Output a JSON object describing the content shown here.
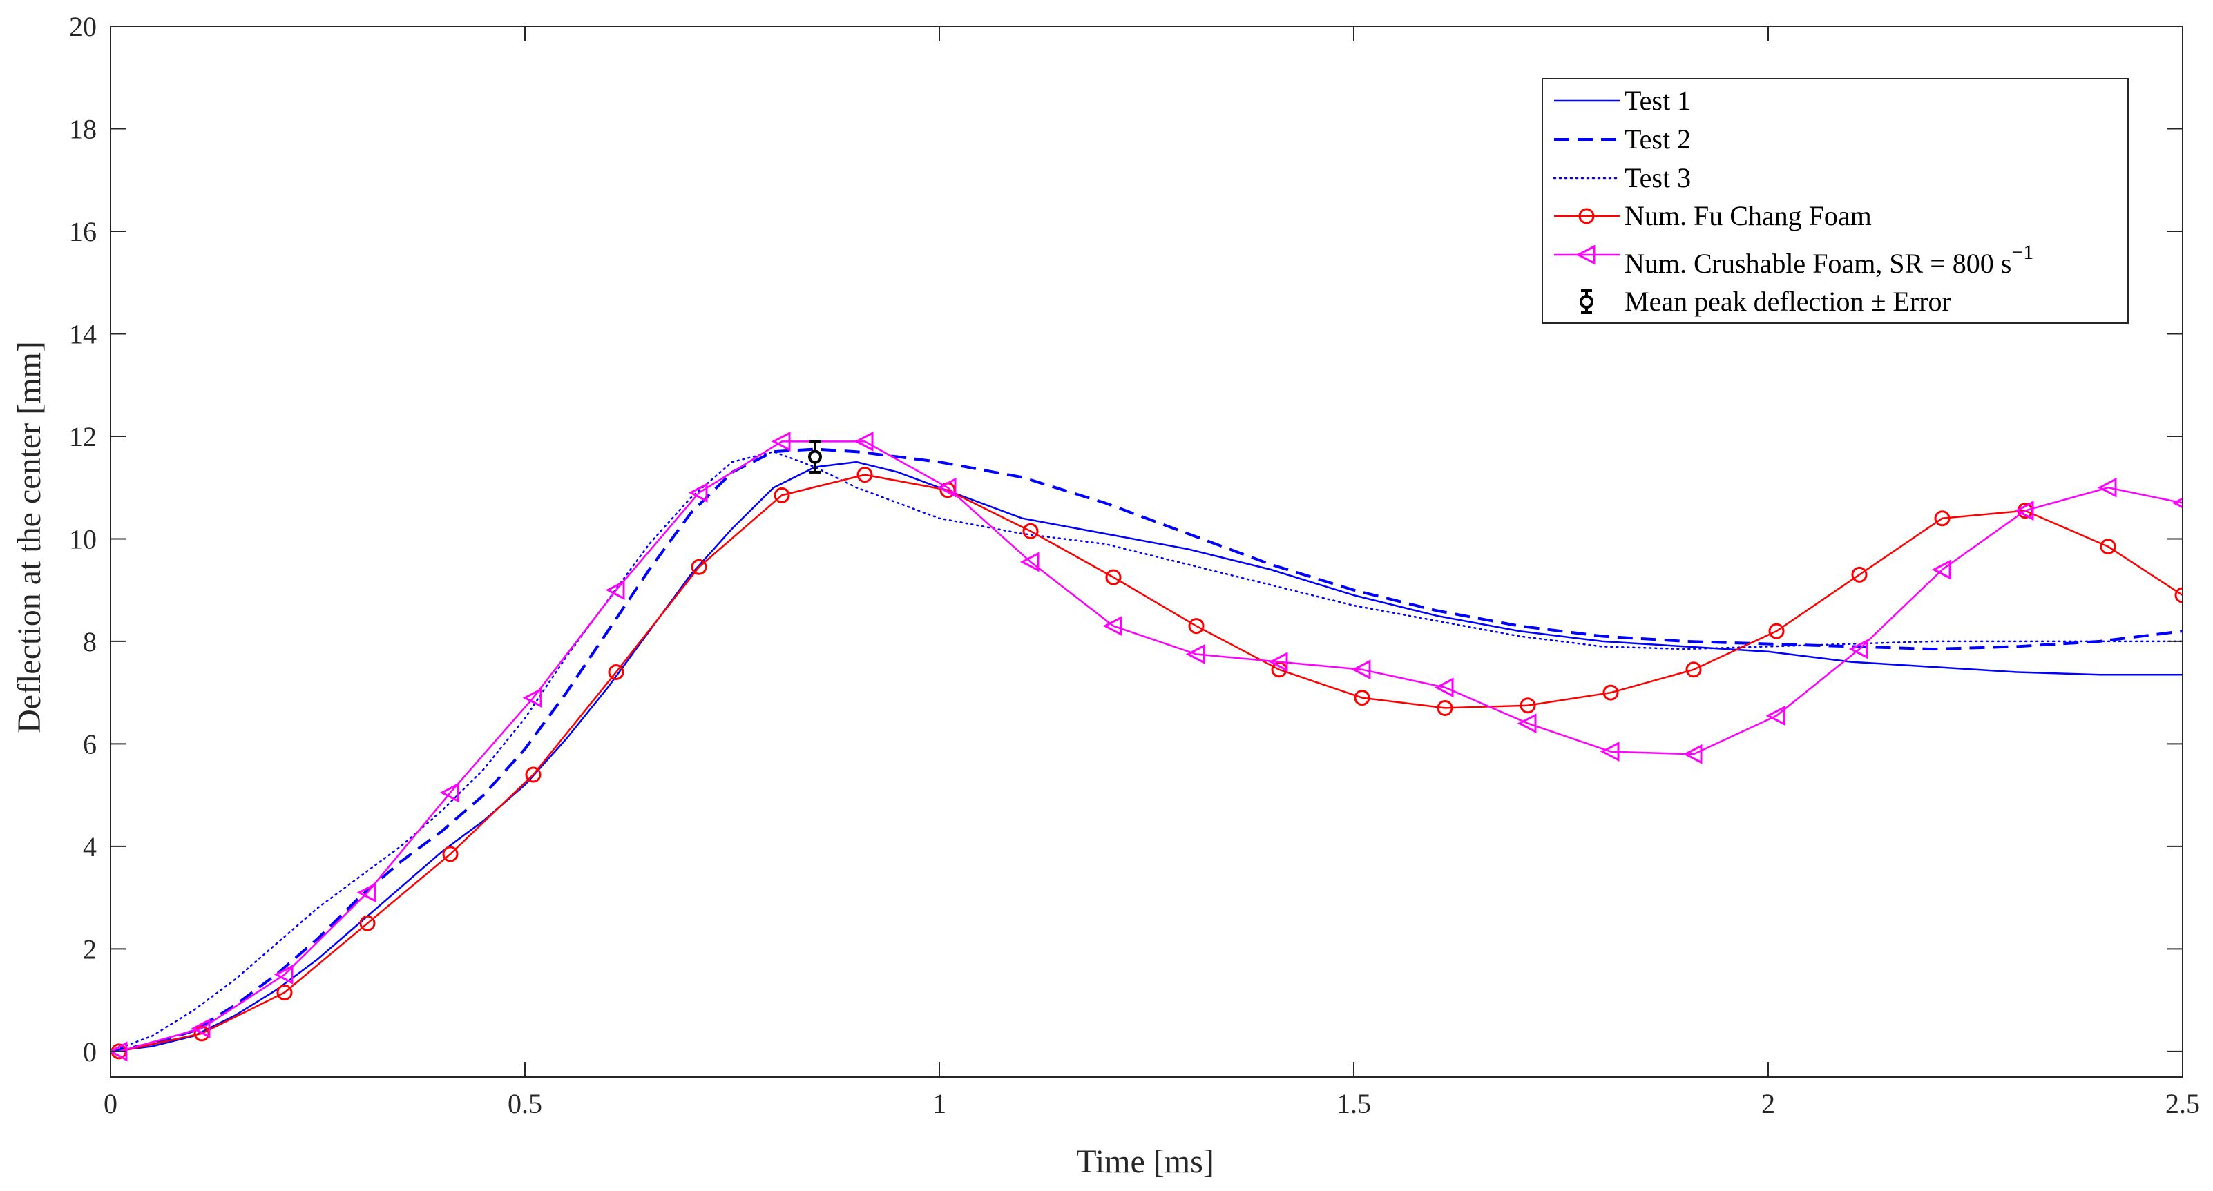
{
  "chart_data": {
    "type": "line",
    "title": "",
    "xlabel": "Time [ms]",
    "ylabel": "Deflection at the center [mm]",
    "xlim": [
      0,
      2.5
    ],
    "ylim": [
      -0.5,
      20
    ],
    "xticks": [
      0,
      0.5,
      1,
      1.5,
      2,
      2.5
    ],
    "xtick_labels": [
      "0",
      "0.5",
      "1",
      "1.5",
      "2",
      "2.5"
    ],
    "yticks": [
      0,
      2,
      4,
      6,
      8,
      10,
      12,
      14,
      16,
      18,
      20
    ],
    "ytick_labels": [
      "0",
      "2",
      "4",
      "6",
      "8",
      "10",
      "12",
      "14",
      "16",
      "18",
      "20"
    ],
    "grid": false,
    "legend_position": "top-right",
    "series": [
      {
        "name": "Test 1",
        "color": "#0000ff",
        "style": "solid",
        "marker": "none",
        "x": [
          0,
          0.05,
          0.1,
          0.15,
          0.2,
          0.25,
          0.3,
          0.35,
          0.4,
          0.45,
          0.5,
          0.55,
          0.6,
          0.65,
          0.7,
          0.75,
          0.8,
          0.85,
          0.9,
          0.95,
          1.0,
          1.1,
          1.2,
          1.3,
          1.4,
          1.5,
          1.6,
          1.7,
          1.8,
          1.9,
          2.0,
          2.1,
          2.2,
          2.3,
          2.4,
          2.5
        ],
        "y": [
          0,
          0.1,
          0.3,
          0.7,
          1.2,
          1.8,
          2.5,
          3.2,
          3.9,
          4.5,
          5.2,
          6.1,
          7.1,
          8.2,
          9.3,
          10.2,
          11.0,
          11.4,
          11.5,
          11.3,
          11.0,
          10.4,
          10.1,
          9.8,
          9.4,
          8.9,
          8.5,
          8.2,
          8.0,
          7.9,
          7.8,
          7.6,
          7.5,
          7.4,
          7.35,
          7.35
        ]
      },
      {
        "name": "Test 2",
        "color": "#0000ff",
        "style": "dashed",
        "marker": "none",
        "x": [
          0,
          0.05,
          0.1,
          0.15,
          0.2,
          0.25,
          0.3,
          0.35,
          0.4,
          0.45,
          0.5,
          0.55,
          0.6,
          0.65,
          0.7,
          0.75,
          0.8,
          0.85,
          0.9,
          1.0,
          1.1,
          1.2,
          1.3,
          1.4,
          1.5,
          1.6,
          1.7,
          1.8,
          1.9,
          2.0,
          2.1,
          2.2,
          2.3,
          2.4,
          2.5
        ],
        "y": [
          0,
          0.15,
          0.4,
          0.9,
          1.5,
          2.2,
          3.0,
          3.7,
          4.3,
          5.0,
          5.9,
          7.0,
          8.2,
          9.4,
          10.5,
          11.3,
          11.7,
          11.75,
          11.7,
          11.5,
          11.2,
          10.7,
          10.1,
          9.5,
          9.0,
          8.6,
          8.3,
          8.1,
          8.0,
          7.95,
          7.9,
          7.85,
          7.9,
          8.0,
          8.2
        ]
      },
      {
        "name": "Test 3",
        "color": "#0000ff",
        "style": "dotted",
        "marker": "none",
        "x": [
          0,
          0.05,
          0.1,
          0.15,
          0.2,
          0.25,
          0.3,
          0.35,
          0.4,
          0.45,
          0.5,
          0.55,
          0.6,
          0.65,
          0.7,
          0.75,
          0.8,
          0.85,
          0.9,
          1.0,
          1.1,
          1.2,
          1.3,
          1.4,
          1.5,
          1.6,
          1.7,
          1.8,
          1.9,
          2.0,
          2.1,
          2.2,
          2.3,
          2.4,
          2.5
        ],
        "y": [
          0,
          0.3,
          0.8,
          1.4,
          2.1,
          2.8,
          3.4,
          4.0,
          4.7,
          5.5,
          6.5,
          7.7,
          8.8,
          9.9,
          10.8,
          11.5,
          11.7,
          11.4,
          11.0,
          10.4,
          10.1,
          9.9,
          9.5,
          9.1,
          8.7,
          8.4,
          8.1,
          7.9,
          7.85,
          7.9,
          7.95,
          8.0,
          8.0,
          8.0,
          8.0
        ]
      },
      {
        "name": "Num. Fu Chang Foam",
        "color": "#ff0000",
        "style": "solid",
        "marker": "circle",
        "x": [
          0.01,
          0.11,
          0.21,
          0.31,
          0.41,
          0.51,
          0.61,
          0.71,
          0.81,
          0.91,
          1.01,
          1.11,
          1.21,
          1.31,
          1.41,
          1.51,
          1.61,
          1.71,
          1.81,
          1.91,
          2.01,
          2.11,
          2.21,
          2.31,
          2.41,
          2.5
        ],
        "y": [
          0,
          0.35,
          1.15,
          2.5,
          3.85,
          5.4,
          7.4,
          9.45,
          10.85,
          11.25,
          10.95,
          10.15,
          9.25,
          8.3,
          7.45,
          6.9,
          6.7,
          6.75,
          7.0,
          7.45,
          8.2,
          9.3,
          10.4,
          10.55,
          9.85,
          8.9
        ]
      },
      {
        "name": "Num. Crushable Foam, SR = 800 s⁻¹",
        "color": "#ff00ff",
        "style": "solid",
        "marker": "triangle-left",
        "x": [
          0.01,
          0.11,
          0.21,
          0.31,
          0.41,
          0.51,
          0.61,
          0.71,
          0.81,
          0.91,
          1.01,
          1.11,
          1.21,
          1.31,
          1.41,
          1.51,
          1.61,
          1.71,
          1.81,
          1.91,
          2.01,
          2.11,
          2.21,
          2.31,
          2.41,
          2.5
        ],
        "y": [
          0,
          0.45,
          1.5,
          3.1,
          5.05,
          6.9,
          9.0,
          10.9,
          11.9,
          11.9,
          11.0,
          9.55,
          8.3,
          7.75,
          7.6,
          7.45,
          7.1,
          6.4,
          5.85,
          5.8,
          6.55,
          7.85,
          9.4,
          10.55,
          11.0,
          10.7
        ]
      }
    ],
    "error_bars": [
      {
        "name": "Mean peak deflection ± Error",
        "color": "#000000",
        "x": 0.85,
        "y": 11.6,
        "error": 0.3
      }
    ]
  },
  "legend": {
    "items": [
      "Test 1",
      "Test 2",
      "Test 3",
      "Num. Fu Chang Foam",
      "Num. Crushable Foam, SR = 800 s",
      "Mean peak deflection ± Error"
    ],
    "crushable_superscript": "−1"
  }
}
